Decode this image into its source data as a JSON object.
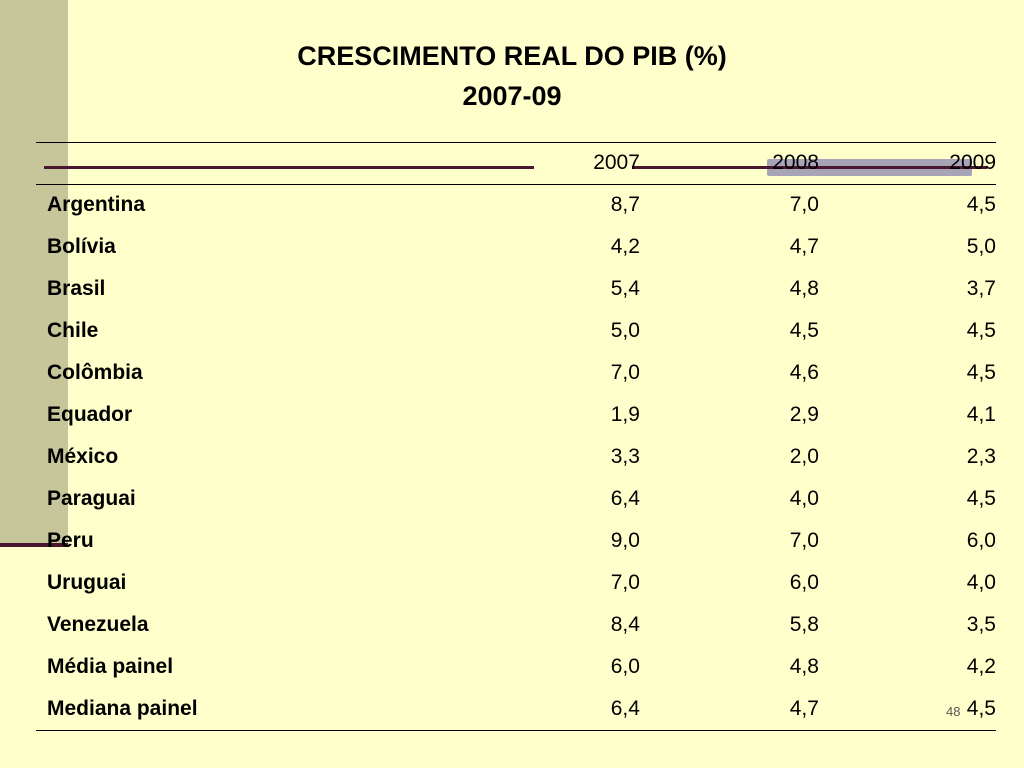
{
  "slide": {
    "title_line1": "CRESCIMENTO REAL DO PIB (%)",
    "title_line2": "2007-09",
    "page_number": "48"
  },
  "table": {
    "columns": [
      "",
      "2007",
      "2008",
      "2009"
    ],
    "rows": [
      {
        "label": "Argentina",
        "values": [
          "8,7",
          "7,0",
          "4,5"
        ]
      },
      {
        "label": "Bolívia",
        "values": [
          "4,2",
          "4,7",
          "5,0"
        ]
      },
      {
        "label": "Brasil",
        "values": [
          "5,4",
          "4,8",
          "3,7"
        ]
      },
      {
        "label": "Chile",
        "values": [
          "5,0",
          "4,5",
          "4,5"
        ]
      },
      {
        "label": "Colômbia",
        "values": [
          "7,0",
          "4,6",
          "4,5"
        ]
      },
      {
        "label": "Equador",
        "values": [
          "1,9",
          "2,9",
          "4,1"
        ]
      },
      {
        "label": "México",
        "values": [
          "3,3",
          "2,0",
          "2,3"
        ]
      },
      {
        "label": "Paraguai",
        "values": [
          "6,4",
          "4,0",
          "4,5"
        ]
      },
      {
        "label": "Peru",
        "values": [
          "9,0",
          "7,0",
          "6,0"
        ]
      },
      {
        "label": "Uruguai",
        "values": [
          "7,0",
          "6,0",
          "4,0"
        ]
      },
      {
        "label": "Venezuela",
        "values": [
          "8,4",
          "5,8",
          "3,5"
        ]
      },
      {
        "label": "Média painel",
        "values": [
          "6,0",
          "4,8",
          "4,2"
        ]
      },
      {
        "label": "Mediana painel",
        "values": [
          "6,4",
          "4,7",
          "4,5"
        ]
      }
    ]
  },
  "colors": {
    "background": "#ffffcc",
    "side_bar": "#c6c69a",
    "accent_line": "#4b1730",
    "highlight": "#a8a4b8"
  }
}
